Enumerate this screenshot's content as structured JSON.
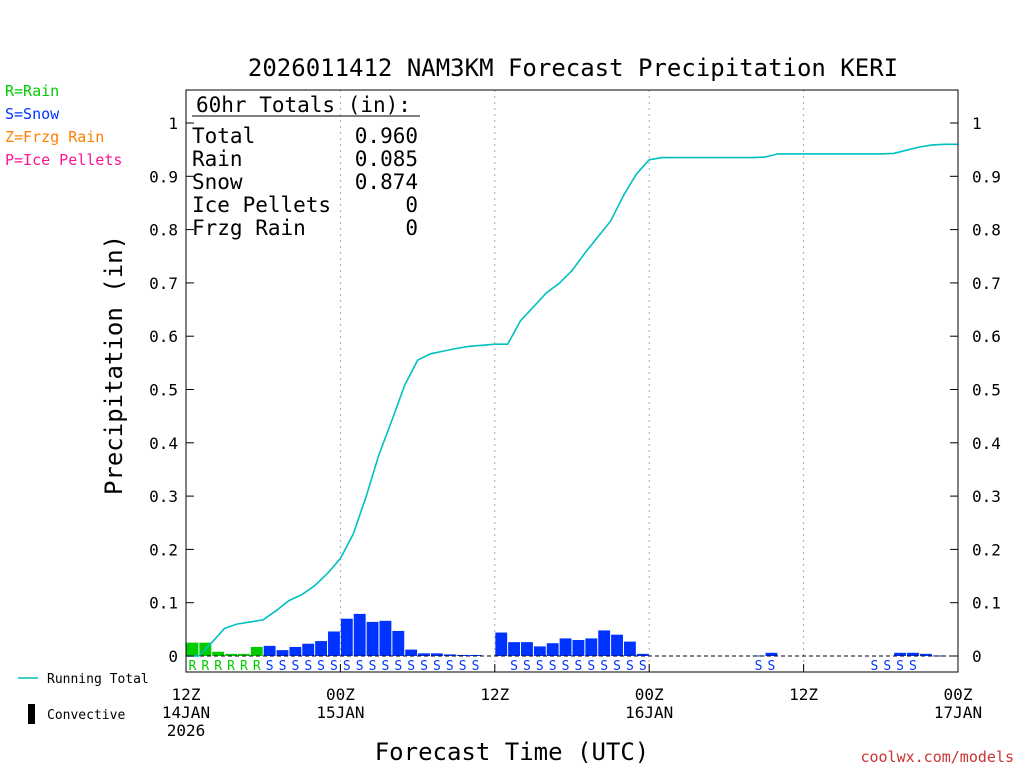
{
  "chart_data": {
    "type": "bar",
    "title": "2026011412 NAM3KM Forecast Precipitation KERI",
    "xlabel": "Forecast Time (UTC)",
    "ylabel": "Precipitation (in)",
    "credit": "coolwx.com/models",
    "ylim": [
      0,
      1.05
    ],
    "y_ticks": [
      {
        "value": 0,
        "label": "0"
      },
      {
        "value": 0.1,
        "label": "0.1"
      },
      {
        "value": 0.2,
        "label": "0.2"
      },
      {
        "value": 0.3,
        "label": "0.3"
      },
      {
        "value": 0.4,
        "label": "0.4"
      },
      {
        "value": 0.5,
        "label": "0.5"
      },
      {
        "value": 0.6,
        "label": "0.6"
      },
      {
        "value": 0.7,
        "label": "0.7"
      },
      {
        "value": 0.8,
        "label": "0.8"
      },
      {
        "value": 0.9,
        "label": "0.9"
      },
      {
        "value": 1,
        "label": "1"
      }
    ],
    "x_range_hours": [
      0,
      60
    ],
    "x_ticks": [
      {
        "hour": 0,
        "lines": [
          "12Z",
          "14JAN",
          "2026"
        ]
      },
      {
        "hour": 12,
        "lines": [
          "00Z",
          "15JAN"
        ]
      },
      {
        "hour": 24,
        "lines": [
          "12Z"
        ]
      },
      {
        "hour": 36,
        "lines": [
          "00Z",
          "16JAN"
        ]
      },
      {
        "hour": 48,
        "lines": [
          "12Z"
        ]
      },
      {
        "hour": 60,
        "lines": [
          "00Z",
          "17JAN"
        ]
      }
    ],
    "gridlines_x_hours": [
      12,
      24,
      36,
      48
    ],
    "colors": {
      "rain": "#00cc00",
      "snow": "#0033ff",
      "frzg": "#ff8000",
      "ice": "#ff1493",
      "running": "#00c0c0",
      "convective": "#000000",
      "text": "#000000",
      "grid": "#aaaaaa"
    },
    "precip_legend": [
      {
        "text": "R=Rain",
        "color": "#00cc00"
      },
      {
        "text": "S=Snow",
        "color": "#0033ff"
      },
      {
        "text": "Z=Frzg Rain",
        "color": "#ff8000"
      },
      {
        "text": "P=Ice Pellets",
        "color": "#ff1493"
      }
    ],
    "line_legend": [
      {
        "text": "Running Total",
        "kind": "line",
        "color": "#00c0c0"
      },
      {
        "text": "Convective",
        "kind": "box",
        "color": "#000000"
      }
    ],
    "totals": {
      "heading": "60hr Totals (in):",
      "rows": [
        {
          "label": "Total",
          "value": "0.960"
        },
        {
          "label": "Rain",
          "value": "0.085"
        },
        {
          "label": "Snow",
          "value": "0.874"
        },
        {
          "label": "Ice Pellets",
          "value": "0"
        },
        {
          "label": "Frzg Rain",
          "value": "0"
        }
      ]
    },
    "series": [
      {
        "name": "Rain",
        "type_letter": "R",
        "color": "#00cc00",
        "bars": [
          {
            "hour": 1,
            "value": 0.025
          },
          {
            "hour": 2,
            "value": 0.025
          },
          {
            "hour": 3,
            "value": 0.008
          },
          {
            "hour": 4,
            "value": 0.004
          },
          {
            "hour": 5,
            "value": 0.004
          },
          {
            "hour": 6,
            "value": 0.017
          }
        ]
      },
      {
        "name": "Snow",
        "type_letter": "S",
        "color": "#0033ff",
        "bars": [
          {
            "hour": 7,
            "value": 0.019
          },
          {
            "hour": 8,
            "value": 0.011
          },
          {
            "hour": 9,
            "value": 0.017
          },
          {
            "hour": 10,
            "value": 0.023
          },
          {
            "hour": 11,
            "value": 0.028
          },
          {
            "hour": 12,
            "value": 0.046
          },
          {
            "hour": 13,
            "value": 0.07
          },
          {
            "hour": 14,
            "value": 0.079
          },
          {
            "hour": 15,
            "value": 0.064
          },
          {
            "hour": 16,
            "value": 0.066
          },
          {
            "hour": 17,
            "value": 0.047
          },
          {
            "hour": 18,
            "value": 0.012
          },
          {
            "hour": 19,
            "value": 0.005
          },
          {
            "hour": 20,
            "value": 0.005
          },
          {
            "hour": 21,
            "value": 0.003
          },
          {
            "hour": 22,
            "value": 0.002
          },
          {
            "hour": 23,
            "value": 0.002
          },
          {
            "hour": 24,
            "value": 0
          },
          {
            "hour": 25,
            "value": 0.044
          },
          {
            "hour": 26,
            "value": 0.026
          },
          {
            "hour": 27,
            "value": 0.026
          },
          {
            "hour": 28,
            "value": 0.018
          },
          {
            "hour": 29,
            "value": 0.024
          },
          {
            "hour": 30,
            "value": 0.033
          },
          {
            "hour": 31,
            "value": 0.03
          },
          {
            "hour": 32,
            "value": 0.033
          },
          {
            "hour": 33,
            "value": 0.048
          },
          {
            "hour": 34,
            "value": 0.04
          },
          {
            "hour": 35,
            "value": 0.027
          },
          {
            "hour": 36,
            "value": 0.004
          },
          {
            "hour": 45,
            "value": 0.001
          },
          {
            "hour": 46,
            "value": 0.006
          },
          {
            "hour": 56,
            "value": 0.006
          },
          {
            "hour": 57,
            "value": 0.006
          },
          {
            "hour": 58,
            "value": 0.004
          },
          {
            "hour": 59,
            "value": 0.001
          }
        ]
      }
    ],
    "running_total": {
      "name": "Running Total",
      "hours": [
        1,
        2,
        3,
        4,
        5,
        6,
        7,
        8,
        9,
        10,
        11,
        12,
        13,
        14,
        15,
        16,
        17,
        18,
        19,
        20,
        21,
        22,
        23,
        24,
        25,
        26,
        27,
        28,
        29,
        30,
        31,
        32,
        33,
        34,
        35,
        36,
        37,
        38,
        39,
        40,
        41,
        42,
        43,
        44,
        45,
        46,
        47,
        48,
        49,
        50,
        51,
        52,
        53,
        54,
        55,
        56,
        57,
        58,
        59,
        60
      ],
      "values": [
        0.0,
        0.025,
        0.052,
        0.06,
        0.064,
        0.068,
        0.085,
        0.104,
        0.115,
        0.132,
        0.155,
        0.183,
        0.229,
        0.299,
        0.378,
        0.442,
        0.508,
        0.555,
        0.567,
        0.572,
        0.577,
        0.581,
        0.583,
        0.585,
        0.585,
        0.629,
        0.655,
        0.681,
        0.699,
        0.723,
        0.756,
        0.786,
        0.816,
        0.864,
        0.904,
        0.931,
        0.935,
        0.935,
        0.935,
        0.935,
        0.935,
        0.935,
        0.935,
        0.935,
        0.936,
        0.942,
        0.942,
        0.942,
        0.942,
        0.942,
        0.942,
        0.942,
        0.942,
        0.942,
        0.943,
        0.949,
        0.955,
        0.959,
        0.96,
        0.96
      ]
    },
    "type_markers": [
      {
        "hour": 1,
        "letter": "R",
        "color": "#00cc00"
      },
      {
        "hour": 2,
        "letter": "R",
        "color": "#00cc00"
      },
      {
        "hour": 3,
        "letter": "R",
        "color": "#00cc00"
      },
      {
        "hour": 4,
        "letter": "R",
        "color": "#00cc00"
      },
      {
        "hour": 5,
        "letter": "R",
        "color": "#00cc00"
      },
      {
        "hour": 6,
        "letter": "R",
        "color": "#00cc00"
      },
      {
        "hour": 7,
        "letter": "S",
        "color": "#0033ff"
      },
      {
        "hour": 8,
        "letter": "S",
        "color": "#0033ff"
      },
      {
        "hour": 9,
        "letter": "S",
        "color": "#0033ff"
      },
      {
        "hour": 10,
        "letter": "S",
        "color": "#0033ff"
      },
      {
        "hour": 11,
        "letter": "S",
        "color": "#0033ff"
      },
      {
        "hour": 12,
        "letter": "S",
        "color": "#0033ff"
      },
      {
        "hour": 13,
        "letter": "S",
        "color": "#0033ff"
      },
      {
        "hour": 14,
        "letter": "S",
        "color": "#0033ff"
      },
      {
        "hour": 15,
        "letter": "S",
        "color": "#0033ff"
      },
      {
        "hour": 16,
        "letter": "S",
        "color": "#0033ff"
      },
      {
        "hour": 17,
        "letter": "S",
        "color": "#0033ff"
      },
      {
        "hour": 18,
        "letter": "S",
        "color": "#0033ff"
      },
      {
        "hour": 19,
        "letter": "S",
        "color": "#0033ff"
      },
      {
        "hour": 20,
        "letter": "S",
        "color": "#0033ff"
      },
      {
        "hour": 21,
        "letter": "S",
        "color": "#0033ff"
      },
      {
        "hour": 22,
        "letter": "S",
        "color": "#0033ff"
      },
      {
        "hour": 23,
        "letter": "S",
        "color": "#0033ff"
      },
      {
        "hour": 26,
        "letter": "S",
        "color": "#0033ff"
      },
      {
        "hour": 27,
        "letter": "S",
        "color": "#0033ff"
      },
      {
        "hour": 28,
        "letter": "S",
        "color": "#0033ff"
      },
      {
        "hour": 29,
        "letter": "S",
        "color": "#0033ff"
      },
      {
        "hour": 30,
        "letter": "S",
        "color": "#0033ff"
      },
      {
        "hour": 31,
        "letter": "S",
        "color": "#0033ff"
      },
      {
        "hour": 32,
        "letter": "S",
        "color": "#0033ff"
      },
      {
        "hour": 33,
        "letter": "S",
        "color": "#0033ff"
      },
      {
        "hour": 34,
        "letter": "S",
        "color": "#0033ff"
      },
      {
        "hour": 35,
        "letter": "S",
        "color": "#0033ff"
      },
      {
        "hour": 36,
        "letter": "S",
        "color": "#0033ff"
      },
      {
        "hour": 45,
        "letter": "S",
        "color": "#0033ff"
      },
      {
        "hour": 46,
        "letter": "S",
        "color": "#0033ff"
      },
      {
        "hour": 54,
        "letter": "S",
        "color": "#0033ff"
      },
      {
        "hour": 55,
        "letter": "S",
        "color": "#0033ff"
      },
      {
        "hour": 56,
        "letter": "S",
        "color": "#0033ff"
      },
      {
        "hour": 57,
        "letter": "S",
        "color": "#0033ff"
      }
    ]
  }
}
